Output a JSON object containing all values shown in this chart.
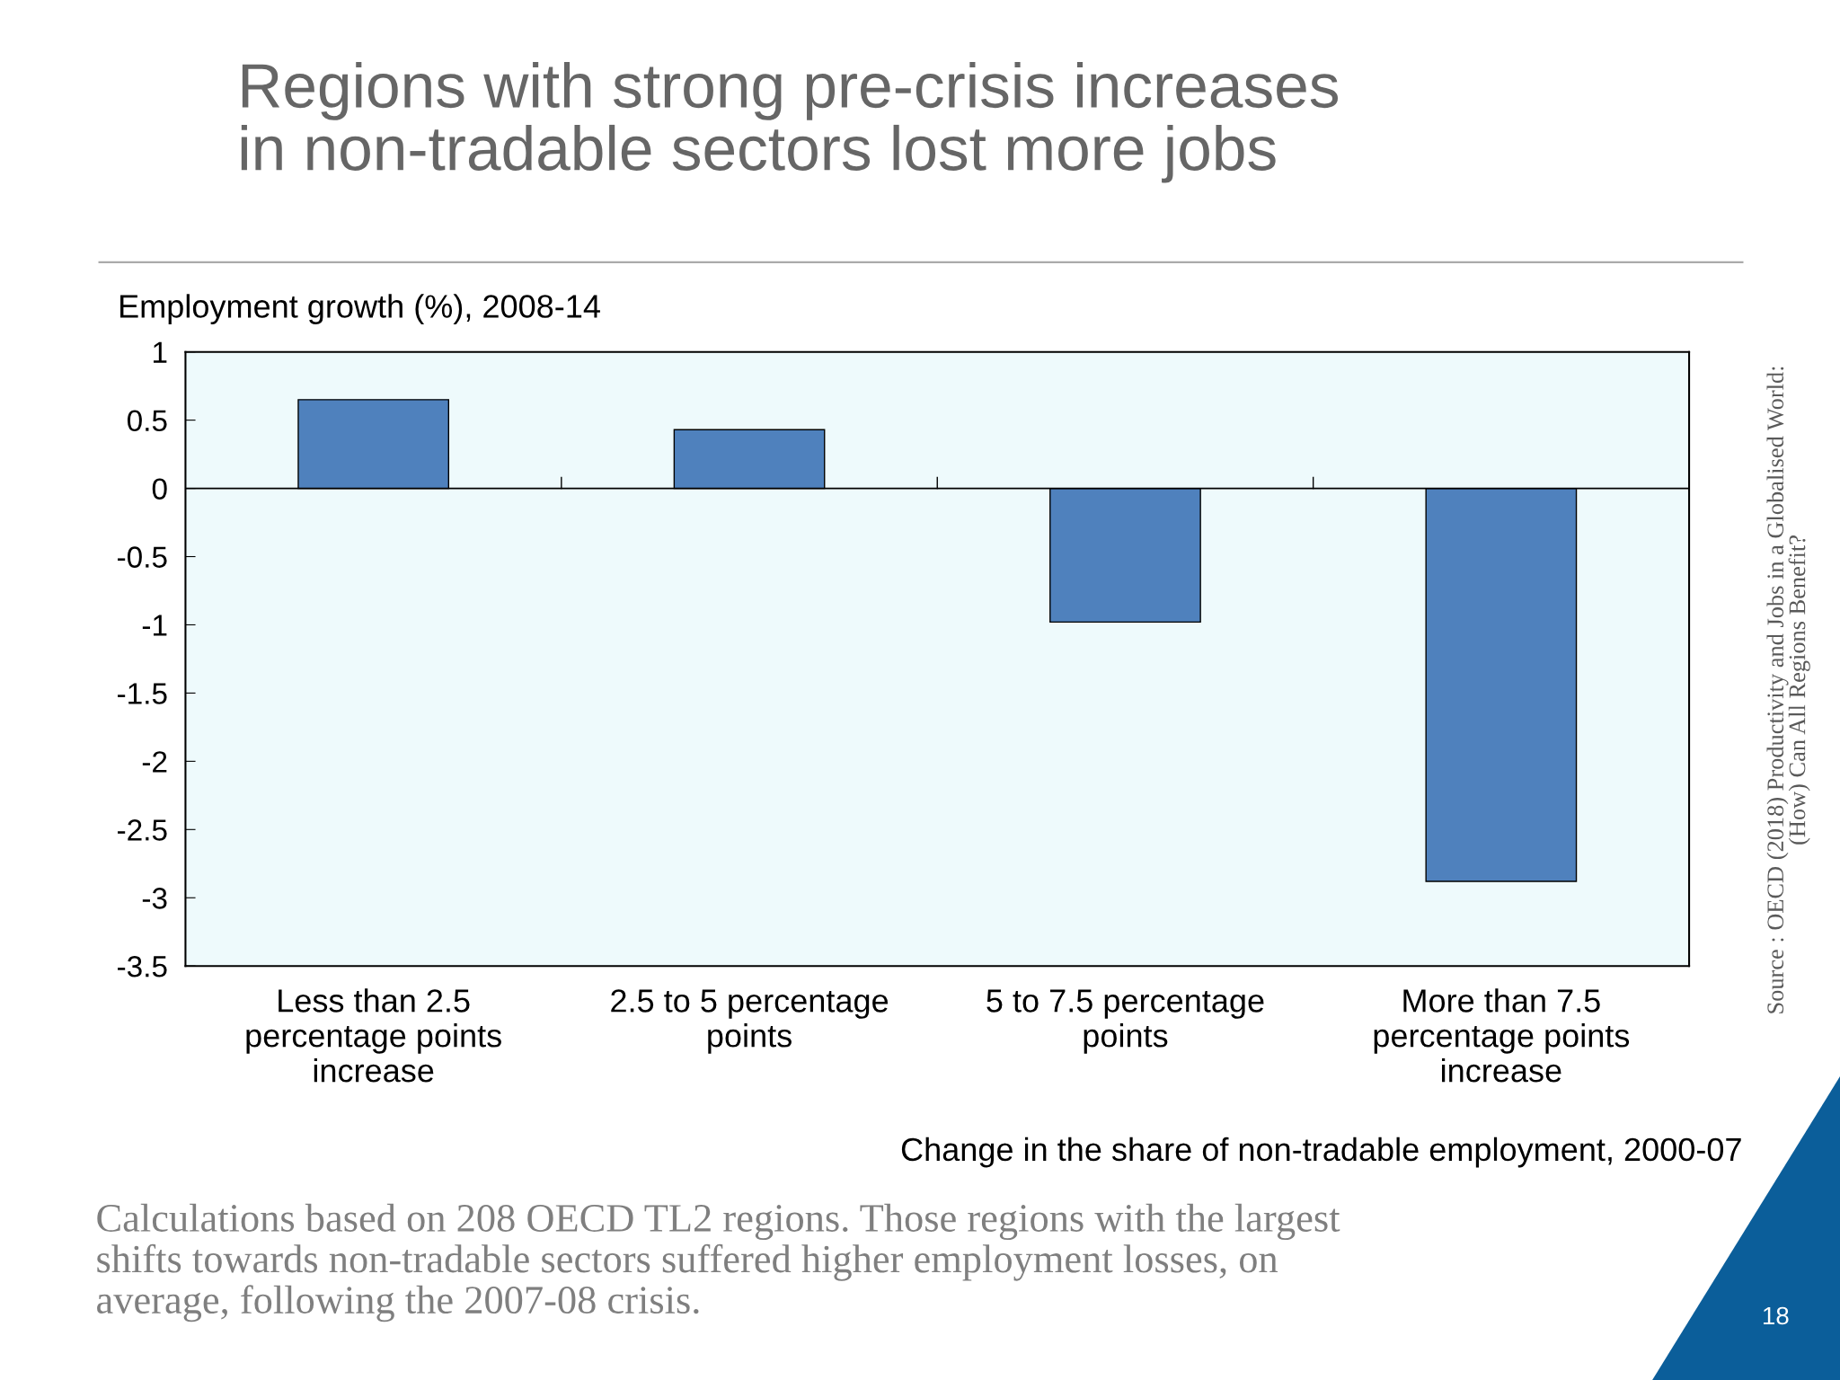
{
  "chart_data": {
    "type": "bar",
    "title": "Regions with strong pre-crisis increases\nin non-tradable sectors lost more jobs",
    "ylabel": "Employment growth (%), 2008-14",
    "xlabel": "Change in the share of non-tradable employment, 2000-07",
    "categories": [
      "Less than 2.5\npercentage points\nincrease",
      "2.5 to 5 percentage\npoints",
      "5 to 7.5 percentage\npoints",
      "More than 7.5\npercentage points\nincrease"
    ],
    "values": [
      0.65,
      0.43,
      -0.98,
      -2.88
    ],
    "color": "#4f81bd",
    "ylim": [
      -3.5,
      1
    ],
    "yticks": [
      -3.5,
      -3,
      -2.5,
      -2,
      -1.5,
      -1,
      -0.5,
      0,
      0.5,
      1
    ],
    "annotations": [
      "Calculations based on 208 OECD TL2 regions. Those regions with the largest\nshifts towards non-tradable sectors suffered higher employment losses, on\naverage, following the 2007-08 crisis.",
      "Source : OECD (2018) Productivity and Jobs in a Globalised World:\n(How) Can All Regions Benefit?",
      "18"
    ]
  }
}
